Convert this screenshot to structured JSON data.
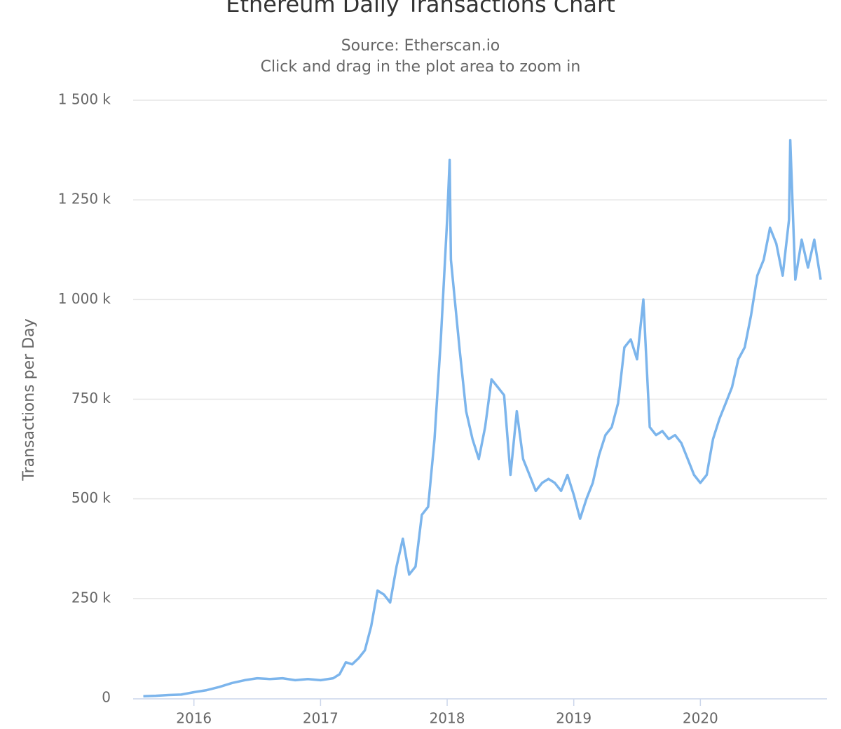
{
  "chart_data": {
    "type": "line",
    "title": "Ethereum Daily Transactions Chart",
    "subtitle": [
      "Source: Etherscan.io",
      "Click and drag in the plot area to zoom in"
    ],
    "y_label": "Transactions per Day",
    "x": [
      2015.6,
      2015.7,
      2015.8,
      2015.9,
      2016.0,
      2016.1,
      2016.2,
      2016.3,
      2016.4,
      2016.5,
      2016.6,
      2016.7,
      2016.8,
      2016.9,
      2017.0,
      2017.1,
      2017.15,
      2017.2,
      2017.25,
      2017.3,
      2017.35,
      2017.4,
      2017.45,
      2017.5,
      2017.55,
      2017.6,
      2017.65,
      2017.7,
      2017.75,
      2017.8,
      2017.85,
      2017.9,
      2017.95,
      2018.0,
      2018.02,
      2018.03,
      2018.06,
      2018.1,
      2018.15,
      2018.2,
      2018.25,
      2018.3,
      2018.35,
      2018.4,
      2018.45,
      2018.5,
      2018.55,
      2018.6,
      2018.65,
      2018.7,
      2018.75,
      2018.8,
      2018.85,
      2018.9,
      2018.95,
      2019.0,
      2019.05,
      2019.1,
      2019.15,
      2019.2,
      2019.25,
      2019.3,
      2019.35,
      2019.4,
      2019.45,
      2019.5,
      2019.55,
      2019.6,
      2019.65,
      2019.7,
      2019.75,
      2019.8,
      2019.85,
      2019.9,
      2019.95,
      2020.0,
      2020.05,
      2020.1,
      2020.15,
      2020.2,
      2020.25,
      2020.3,
      2020.35,
      2020.4,
      2020.45,
      2020.5,
      2020.55,
      2020.6,
      2020.65,
      2020.7,
      2020.71,
      2020.75,
      2020.8,
      2020.85,
      2020.9,
      2020.95
    ],
    "series": [
      {
        "name": "Transactions per Day",
        "color": "#7cb5ec",
        "values": [
          5000,
          6000,
          8000,
          9000,
          15000,
          20000,
          28000,
          38000,
          45000,
          50000,
          48000,
          50000,
          45000,
          48000,
          45000,
          50000,
          60000,
          90000,
          85000,
          100000,
          120000,
          180000,
          270000,
          260000,
          240000,
          330000,
          400000,
          310000,
          330000,
          460000,
          480000,
          650000,
          900000,
          1200000,
          1350000,
          1100000,
          1000000,
          870000,
          720000,
          650000,
          600000,
          680000,
          800000,
          780000,
          760000,
          560000,
          720000,
          600000,
          560000,
          520000,
          540000,
          550000,
          540000,
          520000,
          560000,
          510000,
          450000,
          500000,
          540000,
          610000,
          660000,
          680000,
          740000,
          880000,
          900000,
          850000,
          1000000,
          680000,
          660000,
          670000,
          650000,
          660000,
          640000,
          600000,
          560000,
          540000,
          560000,
          650000,
          700000,
          740000,
          780000,
          850000,
          880000,
          960000,
          1060000,
          1100000,
          1180000,
          1140000,
          1060000,
          1200000,
          1400000,
          1050000,
          1150000,
          1080000,
          1150000,
          1050000
        ]
      }
    ],
    "xlim": [
      2015.52,
      2021.0
    ],
    "xticks": [
      2016,
      2017,
      2018,
      2019,
      2020
    ],
    "ylim": [
      0,
      1500000
    ],
    "yticks": [
      0,
      {
        "value": 250000,
        "label": "250 k"
      },
      {
        "value": 500000,
        "label": "500 k"
      },
      {
        "value": 750000,
        "label": "750 k"
      },
      {
        "value": 1000000,
        "label": "1 000 k"
      },
      {
        "value": 1250000,
        "label": "1 250 k"
      },
      {
        "value": 1500000,
        "label": "1 500 k"
      }
    ],
    "grid": true
  }
}
